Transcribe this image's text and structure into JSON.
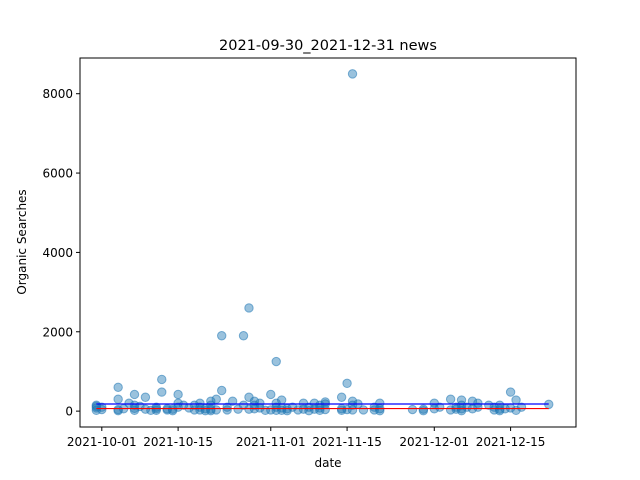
{
  "chart_data": {
    "type": "scatter",
    "title": "2021-09-30_2021-12-31 news",
    "xlabel": "date",
    "ylabel": "Organic Searches",
    "x_tick_labels": [
      "2021-10-01",
      "2021-10-15",
      "2021-11-01",
      "2021-11-15",
      "2021-12-01",
      "2021-12-15"
    ],
    "x_tick_dates": [
      "2021-10-01",
      "2021-10-15",
      "2021-11-01",
      "2021-11-15",
      "2021-12-01",
      "2021-12-15"
    ],
    "y_ticks": [
      0,
      2000,
      4000,
      6000,
      8000
    ],
    "xlim": [
      "2021-09-27",
      "2021-12-27"
    ],
    "ylim": [
      -400,
      8900
    ],
    "grid": false,
    "colors": {
      "points": "#1f77b4",
      "mean_line": "#0000ff",
      "median_line": "#ff0000"
    },
    "points": [
      {
        "x": "2021-09-30",
        "y": 150
      },
      {
        "x": "2021-09-30",
        "y": 80
      },
      {
        "x": "2021-09-30",
        "y": 20
      },
      {
        "x": "2021-09-30",
        "y": 120
      },
      {
        "x": "2021-10-01",
        "y": 100
      },
      {
        "x": "2021-10-01",
        "y": 40
      },
      {
        "x": "2021-10-04",
        "y": 600
      },
      {
        "x": "2021-10-04",
        "y": 300
      },
      {
        "x": "2021-10-04",
        "y": 40
      },
      {
        "x": "2021-10-04",
        "y": 10
      },
      {
        "x": "2021-10-05",
        "y": 60
      },
      {
        "x": "2021-10-06",
        "y": 200
      },
      {
        "x": "2021-10-07",
        "y": 420
      },
      {
        "x": "2021-10-07",
        "y": 150
      },
      {
        "x": "2021-10-07",
        "y": 70
      },
      {
        "x": "2021-10-07",
        "y": 20
      },
      {
        "x": "2021-10-08",
        "y": 120
      },
      {
        "x": "2021-10-09",
        "y": 350
      },
      {
        "x": "2021-10-09",
        "y": 50
      },
      {
        "x": "2021-10-10",
        "y": 20
      },
      {
        "x": "2021-10-11",
        "y": 100
      },
      {
        "x": "2021-10-11",
        "y": 60
      },
      {
        "x": "2021-10-11",
        "y": 20
      },
      {
        "x": "2021-10-12",
        "y": 800
      },
      {
        "x": "2021-10-12",
        "y": 480
      },
      {
        "x": "2021-10-13",
        "y": 60
      },
      {
        "x": "2021-10-13",
        "y": 30
      },
      {
        "x": "2021-10-14",
        "y": 50
      },
      {
        "x": "2021-10-14",
        "y": 10
      },
      {
        "x": "2021-10-15",
        "y": 420
      },
      {
        "x": "2021-10-15",
        "y": 200
      },
      {
        "x": "2021-10-15",
        "y": 100
      },
      {
        "x": "2021-10-16",
        "y": 150
      },
      {
        "x": "2021-10-17",
        "y": 80
      },
      {
        "x": "2021-10-18",
        "y": 150
      },
      {
        "x": "2021-10-18",
        "y": 30
      },
      {
        "x": "2021-10-19",
        "y": 200
      },
      {
        "x": "2021-10-19",
        "y": 100
      },
      {
        "x": "2021-10-19",
        "y": 30
      },
      {
        "x": "2021-10-20",
        "y": 60
      },
      {
        "x": "2021-10-20",
        "y": 10
      },
      {
        "x": "2021-10-21",
        "y": 250
      },
      {
        "x": "2021-10-21",
        "y": 150
      },
      {
        "x": "2021-10-21",
        "y": 50
      },
      {
        "x": "2021-10-21",
        "y": 10
      },
      {
        "x": "2021-10-22",
        "y": 300
      },
      {
        "x": "2021-10-22",
        "y": 30
      },
      {
        "x": "2021-10-23",
        "y": 1900
      },
      {
        "x": "2021-10-23",
        "y": 520
      },
      {
        "x": "2021-10-24",
        "y": 100
      },
      {
        "x": "2021-10-24",
        "y": 30
      },
      {
        "x": "2021-10-25",
        "y": 250
      },
      {
        "x": "2021-10-26",
        "y": 50
      },
      {
        "x": "2021-10-27",
        "y": 1900
      },
      {
        "x": "2021-10-27",
        "y": 150
      },
      {
        "x": "2021-10-28",
        "y": 2600
      },
      {
        "x": "2021-10-28",
        "y": 350
      },
      {
        "x": "2021-10-28",
        "y": 50
      },
      {
        "x": "2021-10-29",
        "y": 250
      },
      {
        "x": "2021-10-29",
        "y": 150
      },
      {
        "x": "2021-10-29",
        "y": 60
      },
      {
        "x": "2021-10-30",
        "y": 200
      },
      {
        "x": "2021-10-30",
        "y": 80
      },
      {
        "x": "2021-10-31",
        "y": 20
      },
      {
        "x": "2021-11-01",
        "y": 420
      },
      {
        "x": "2021-11-01",
        "y": 30
      },
      {
        "x": "2021-11-02",
        "y": 1250
      },
      {
        "x": "2021-11-02",
        "y": 200
      },
      {
        "x": "2021-11-02",
        "y": 100
      },
      {
        "x": "2021-11-02",
        "y": 20
      },
      {
        "x": "2021-11-03",
        "y": 280
      },
      {
        "x": "2021-11-03",
        "y": 80
      },
      {
        "x": "2021-11-03",
        "y": 20
      },
      {
        "x": "2021-11-04",
        "y": 60
      },
      {
        "x": "2021-11-04",
        "y": 10
      },
      {
        "x": "2021-11-05",
        "y": 100
      },
      {
        "x": "2021-11-06",
        "y": 30
      },
      {
        "x": "2021-11-07",
        "y": 200
      },
      {
        "x": "2021-11-07",
        "y": 50
      },
      {
        "x": "2021-11-08",
        "y": 100
      },
      {
        "x": "2021-11-08",
        "y": 10
      },
      {
        "x": "2021-11-09",
        "y": 200
      },
      {
        "x": "2021-11-09",
        "y": 50
      },
      {
        "x": "2021-11-10",
        "y": 150
      },
      {
        "x": "2021-11-10",
        "y": 80
      },
      {
        "x": "2021-11-10",
        "y": 20
      },
      {
        "x": "2021-11-11",
        "y": 230
      },
      {
        "x": "2021-11-11",
        "y": 180
      },
      {
        "x": "2021-11-11",
        "y": 40
      },
      {
        "x": "2021-11-14",
        "y": 350
      },
      {
        "x": "2021-11-14",
        "y": 60
      },
      {
        "x": "2021-11-14",
        "y": 20
      },
      {
        "x": "2021-11-15",
        "y": 700
      },
      {
        "x": "2021-11-15",
        "y": 40
      },
      {
        "x": "2021-11-16",
        "y": 8500
      },
      {
        "x": "2021-11-16",
        "y": 250
      },
      {
        "x": "2021-11-16",
        "y": 150
      },
      {
        "x": "2021-11-16",
        "y": 30
      },
      {
        "x": "2021-11-17",
        "y": 180
      },
      {
        "x": "2021-11-18",
        "y": 30
      },
      {
        "x": "2021-11-20",
        "y": 100
      },
      {
        "x": "2021-11-20",
        "y": 30
      },
      {
        "x": "2021-11-21",
        "y": 200
      },
      {
        "x": "2021-11-21",
        "y": 60
      },
      {
        "x": "2021-11-21",
        "y": 10
      },
      {
        "x": "2021-11-27",
        "y": 40
      },
      {
        "x": "2021-11-29",
        "y": 50
      },
      {
        "x": "2021-11-29",
        "y": 10
      },
      {
        "x": "2021-12-01",
        "y": 200
      },
      {
        "x": "2021-12-01",
        "y": 60
      },
      {
        "x": "2021-12-02",
        "y": 100
      },
      {
        "x": "2021-12-04",
        "y": 300
      },
      {
        "x": "2021-12-04",
        "y": 30
      },
      {
        "x": "2021-12-05",
        "y": 100
      },
      {
        "x": "2021-12-05",
        "y": 50
      },
      {
        "x": "2021-12-06",
        "y": 280
      },
      {
        "x": "2021-12-06",
        "y": 150
      },
      {
        "x": "2021-12-06",
        "y": 60
      },
      {
        "x": "2021-12-06",
        "y": 10
      },
      {
        "x": "2021-12-07",
        "y": 100
      },
      {
        "x": "2021-12-08",
        "y": 250
      },
      {
        "x": "2021-12-08",
        "y": 60
      },
      {
        "x": "2021-12-09",
        "y": 200
      },
      {
        "x": "2021-12-09",
        "y": 100
      },
      {
        "x": "2021-12-11",
        "y": 150
      },
      {
        "x": "2021-12-12",
        "y": 100
      },
      {
        "x": "2021-12-12",
        "y": 30
      },
      {
        "x": "2021-12-13",
        "y": 150
      },
      {
        "x": "2021-12-13",
        "y": 50
      },
      {
        "x": "2021-12-13",
        "y": 10
      },
      {
        "x": "2021-12-14",
        "y": 60
      },
      {
        "x": "2021-12-15",
        "y": 480
      },
      {
        "x": "2021-12-15",
        "y": 80
      },
      {
        "x": "2021-12-16",
        "y": 280
      },
      {
        "x": "2021-12-16",
        "y": 20
      },
      {
        "x": "2021-12-17",
        "y": 100
      },
      {
        "x": "2021-12-22",
        "y": 170
      }
    ],
    "lines": [
      {
        "color": "#0000ff",
        "x": [
          "2021-09-30",
          "2021-12-22"
        ],
        "y": [
          180,
          180
        ]
      },
      {
        "color": "#ff0000",
        "x": [
          "2021-09-30",
          "2021-12-22"
        ],
        "y": [
          65,
          65
        ]
      }
    ]
  }
}
